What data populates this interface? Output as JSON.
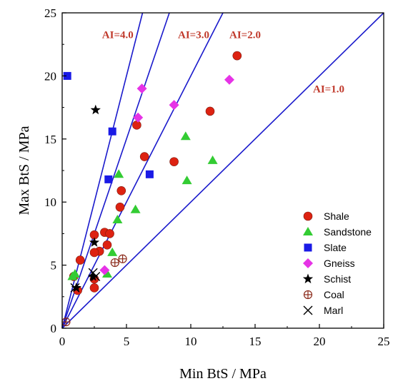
{
  "chart_data": {
    "type": "scatter",
    "title": "",
    "xlabel": "Min BtS / MPa",
    "ylabel": "Max BtS / MPa",
    "xlim": [
      0,
      25
    ],
    "ylim": [
      0,
      25
    ],
    "xticks": [
      0,
      5,
      10,
      15,
      20,
      25
    ],
    "yticks": [
      0,
      5,
      10,
      15,
      20,
      25
    ],
    "grid": false,
    "legend_position": "bottom-right",
    "reference_lines": [
      {
        "label": "AI=4.0",
        "slope": 4.0,
        "color": "#1a1acc",
        "label_color": "#c0392b",
        "label_at": [
          3.1,
          23.0
        ]
      },
      {
        "label": "AI=3.0",
        "slope": 3.0,
        "color": "#1a1acc",
        "label_color": "#c0392b",
        "label_at": [
          9.0,
          23.0
        ]
      },
      {
        "label": "AI=2.0",
        "slope": 2.0,
        "color": "#1a1acc",
        "label_color": "#c0392b",
        "label_at": [
          13.0,
          23.0
        ]
      },
      {
        "label": "AI=1.0",
        "slope": 1.0,
        "color": "#1a1acc",
        "label_color": "#c0392b",
        "label_at": [
          19.5,
          18.7
        ]
      }
    ],
    "series": [
      {
        "name": "Shale",
        "marker": "circle",
        "color": "#dd2211",
        "points": [
          [
            13.6,
            21.6
          ],
          [
            11.5,
            17.2
          ],
          [
            5.8,
            16.1
          ],
          [
            6.4,
            13.6
          ],
          [
            8.7,
            13.2
          ],
          [
            4.6,
            10.9
          ],
          [
            4.5,
            9.6
          ],
          [
            2.5,
            7.4
          ],
          [
            3.3,
            7.6
          ],
          [
            3.7,
            7.5
          ],
          [
            3.5,
            6.6
          ],
          [
            2.9,
            6.1
          ],
          [
            2.5,
            6.0
          ],
          [
            1.4,
            5.4
          ],
          [
            0.9,
            4.1
          ],
          [
            2.5,
            3.9
          ],
          [
            2.5,
            3.2
          ],
          [
            1.2,
            3.0
          ]
        ]
      },
      {
        "name": "Sandstone",
        "marker": "triangle",
        "color": "#33cc33",
        "points": [
          [
            9.6,
            15.2
          ],
          [
            11.7,
            13.3
          ],
          [
            4.4,
            12.2
          ],
          [
            9.7,
            11.7
          ],
          [
            5.7,
            9.4
          ],
          [
            4.3,
            8.6
          ],
          [
            3.9,
            6.0
          ],
          [
            3.5,
            4.3
          ],
          [
            1.0,
            4.3
          ],
          [
            0.8,
            4.1
          ]
        ]
      },
      {
        "name": "Slate",
        "marker": "square",
        "color": "#1a1ae6",
        "points": [
          [
            0.4,
            20.0
          ],
          [
            3.9,
            15.6
          ],
          [
            6.8,
            12.2
          ],
          [
            3.6,
            11.8
          ]
        ]
      },
      {
        "name": "Gneiss",
        "marker": "diamond",
        "color": "#e633e6",
        "points": [
          [
            13.0,
            19.7
          ],
          [
            6.2,
            19.0
          ],
          [
            8.7,
            17.7
          ],
          [
            5.9,
            16.7
          ],
          [
            3.3,
            4.6
          ]
        ]
      },
      {
        "name": "Schist",
        "marker": "star",
        "color": "#000000",
        "points": [
          [
            2.6,
            17.3
          ],
          [
            2.5,
            6.8
          ],
          [
            2.4,
            4.1
          ],
          [
            1.1,
            3.2
          ]
        ]
      },
      {
        "name": "Coal",
        "marker": "circle-plus",
        "color": "#8b2a1a",
        "points": [
          [
            4.7,
            5.5
          ],
          [
            4.1,
            5.2
          ],
          [
            0.3,
            0.5
          ]
        ]
      },
      {
        "name": "Marl",
        "marker": "x",
        "color": "#000000",
        "points": [
          [
            2.4,
            4.4
          ],
          [
            2.6,
            4.1
          ],
          [
            1.0,
            3.2
          ]
        ]
      }
    ]
  }
}
